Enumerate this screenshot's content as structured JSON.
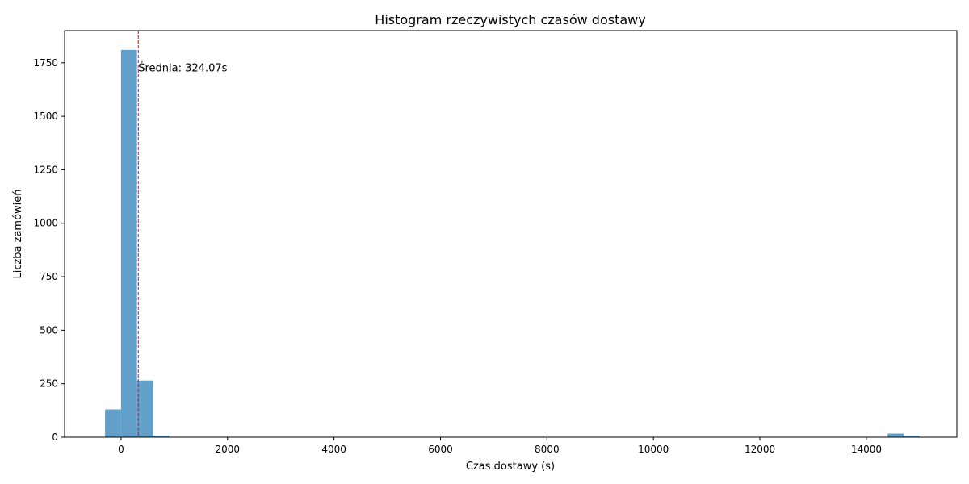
{
  "chart_data": {
    "type": "bar",
    "title": "Histogram rzeczywistych czasów dostawy",
    "xlabel": "Czas dostawy (s)",
    "ylabel": "Liczba zamówień",
    "xlim": [
      -1060,
      15700
    ],
    "ylim": [
      0,
      1900
    ],
    "xticks": [
      0,
      2000,
      4000,
      6000,
      8000,
      10000,
      12000,
      14000
    ],
    "yticks": [
      0,
      250,
      500,
      750,
      1000,
      1250,
      1500,
      1750
    ],
    "bins": [
      {
        "start": -300,
        "end": 0,
        "value": 130
      },
      {
        "start": 0,
        "end": 300,
        "value": 1810
      },
      {
        "start": 300,
        "end": 600,
        "value": 265
      },
      {
        "start": 600,
        "end": 900,
        "value": 7
      },
      {
        "start": 14400,
        "end": 14700,
        "value": 17
      },
      {
        "start": 14700,
        "end": 15000,
        "value": 7
      }
    ],
    "mean_line": {
      "x": 324.07,
      "label": "Średnia: 324.07s",
      "color": "#ff0000"
    },
    "bar_color": "#1f77b4",
    "bar_opacity": 0.7,
    "grid": false,
    "legend": "none"
  }
}
